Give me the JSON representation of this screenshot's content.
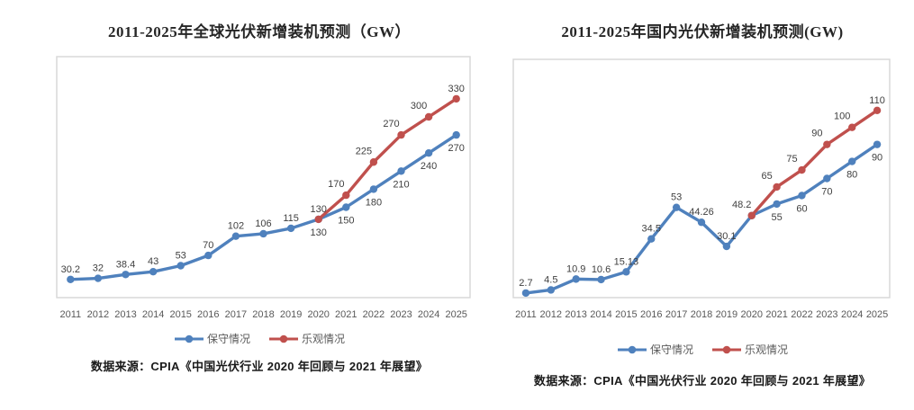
{
  "page": {
    "background": "#ffffff"
  },
  "chart_data": [
    {
      "type": "line",
      "title": "2011-2025年全球光伏新增装机预测（GW）",
      "categories": [
        "2011",
        "2012",
        "2013",
        "2014",
        "2015",
        "2016",
        "2017",
        "2018",
        "2019",
        "2020",
        "2021",
        "2022",
        "2023",
        "2024",
        "2025"
      ],
      "ylim": [
        0,
        400
      ],
      "grid": false,
      "legend_position": "bottom",
      "series": [
        {
          "name": "保守情况",
          "color": "#4F81BD",
          "values": [
            30.2,
            32,
            38.4,
            43,
            53,
            70,
            102,
            106,
            115,
            130,
            150,
            180,
            210,
            240,
            270
          ],
          "labels": [
            "30.2",
            "32",
            "38.4",
            "43",
            "53",
            "70",
            "102",
            "106",
            "115",
            "130",
            "150",
            "180",
            "210",
            "240",
            "270"
          ],
          "label_pos": [
            "a",
            "a",
            "a",
            "a",
            "a",
            "a",
            "a",
            "a",
            "a",
            "b",
            "b",
            "b",
            "b",
            "b",
            "b"
          ]
        },
        {
          "name": "乐观情况",
          "color": "#C0504D",
          "values": [
            null,
            null,
            null,
            null,
            null,
            null,
            null,
            null,
            null,
            130,
            170,
            225,
            270,
            300,
            330
          ],
          "labels": [
            "",
            "",
            "",
            "",
            "",
            "",
            "",
            "",
            "",
            "130",
            "170",
            "225",
            "270",
            "300",
            "330"
          ],
          "label_pos": [
            null,
            null,
            null,
            null,
            null,
            null,
            null,
            null,
            null,
            "a",
            "al",
            "al",
            "al",
            "al",
            "a"
          ]
        }
      ],
      "source": "数据来源：CPIA《中国光伏行业 2020 年回顾与 2021 年展望》"
    },
    {
      "type": "line",
      "title": "2011-2025年国内光伏新增装机预测(GW)",
      "categories": [
        "2011",
        "2012",
        "2013",
        "2014",
        "2015",
        "2016",
        "2017",
        "2018",
        "2019",
        "2020",
        "2021",
        "2022",
        "2023",
        "2024",
        "2025"
      ],
      "ylim": [
        0,
        140
      ],
      "grid": false,
      "legend_position": "bottom",
      "series": [
        {
          "name": "保守情况",
          "color": "#4F81BD",
          "values": [
            2.7,
            4.5,
            10.9,
            10.6,
            15.13,
            34.5,
            53,
            44.26,
            30.1,
            48.2,
            55,
            60,
            70,
            80,
            90
          ],
          "labels": [
            "2.7",
            "4.5",
            "10.9",
            "10.6",
            "15.13",
            "34.5",
            "53",
            "44.26",
            "30.1",
            "",
            "55",
            "60",
            "70",
            "80",
            "90"
          ],
          "label_pos": [
            "a",
            "a",
            "a",
            "a",
            "a",
            "a",
            "a",
            "a",
            "a",
            null,
            "b",
            "b",
            "b",
            "b",
            "b"
          ]
        },
        {
          "name": "乐观情况",
          "color": "#C0504D",
          "values": [
            null,
            null,
            null,
            null,
            null,
            null,
            null,
            null,
            null,
            48.2,
            65,
            75,
            90,
            100,
            110
          ],
          "labels": [
            "",
            "",
            "",
            "",
            "",
            "",
            "",
            "",
            "",
            "48.2",
            "65",
            "75",
            "90",
            "100",
            "110"
          ],
          "label_pos": [
            null,
            null,
            null,
            null,
            null,
            null,
            null,
            null,
            null,
            "al",
            "al",
            "al",
            "al",
            "al",
            "a"
          ]
        }
      ],
      "source": "数据来源：CPIA《中国光伏行业 2020 年回顾与 2021 年展望》"
    }
  ],
  "style": {
    "plot_border_color": "#d9d9d9",
    "data_label_color": "#404040",
    "axis_label_color": "#595959"
  }
}
